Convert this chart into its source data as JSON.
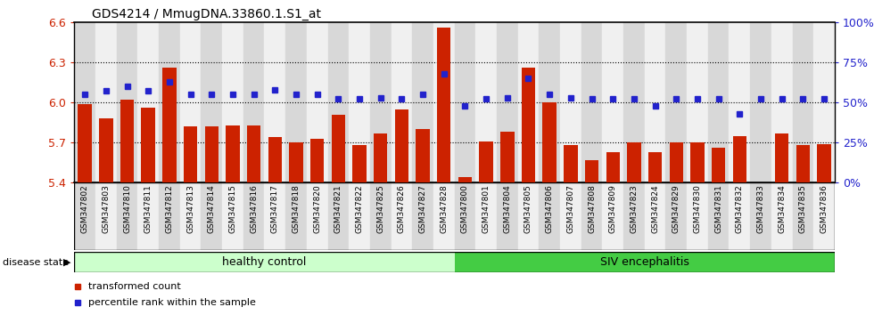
{
  "title": "GDS4214 / MmugDNA.33860.1.S1_at",
  "samples": [
    "GSM347802",
    "GSM347803",
    "GSM347810",
    "GSM347811",
    "GSM347812",
    "GSM347813",
    "GSM347814",
    "GSM347815",
    "GSM347816",
    "GSM347817",
    "GSM347818",
    "GSM347820",
    "GSM347821",
    "GSM347822",
    "GSM347825",
    "GSM347826",
    "GSM347827",
    "GSM347828",
    "GSM347800",
    "GSM347801",
    "GSM347804",
    "GSM347805",
    "GSM347806",
    "GSM347807",
    "GSM347808",
    "GSM347809",
    "GSM347823",
    "GSM347824",
    "GSM347829",
    "GSM347830",
    "GSM347831",
    "GSM347832",
    "GSM347833",
    "GSM347834",
    "GSM347835",
    "GSM347836"
  ],
  "bar_values": [
    5.99,
    5.88,
    6.02,
    5.96,
    6.26,
    5.82,
    5.82,
    5.83,
    5.83,
    5.74,
    5.7,
    5.73,
    5.91,
    5.68,
    5.77,
    5.95,
    5.8,
    6.56,
    5.44,
    5.71,
    5.78,
    6.26,
    6.0,
    5.68,
    5.57,
    5.63,
    5.7,
    5.63,
    5.7,
    5.7,
    5.66,
    5.75,
    5.39,
    5.77,
    5.68,
    5.69
  ],
  "percentile_values": [
    55,
    57,
    60,
    57,
    63,
    55,
    55,
    55,
    55,
    58,
    55,
    55,
    52,
    52,
    53,
    52,
    55,
    68,
    48,
    52,
    53,
    65,
    55,
    53,
    52,
    52,
    52,
    48,
    52,
    52,
    52,
    43,
    52,
    52,
    52,
    52
  ],
  "healthy_count": 18,
  "siv_count": 18,
  "ylim_left": [
    5.4,
    6.6
  ],
  "ylim_right": [
    0,
    100
  ],
  "yticks_left": [
    5.4,
    5.7,
    6.0,
    6.3,
    6.6
  ],
  "yticks_right": [
    0,
    25,
    50,
    75,
    100
  ],
  "bar_color": "#cc2200",
  "percentile_color": "#2222cc",
  "healthy_bg": "#ccffcc",
  "siv_bg": "#44cc44",
  "col_bg_even": "#d8d8d8",
  "col_bg_odd": "#f0f0f0",
  "bar_width": 0.65
}
